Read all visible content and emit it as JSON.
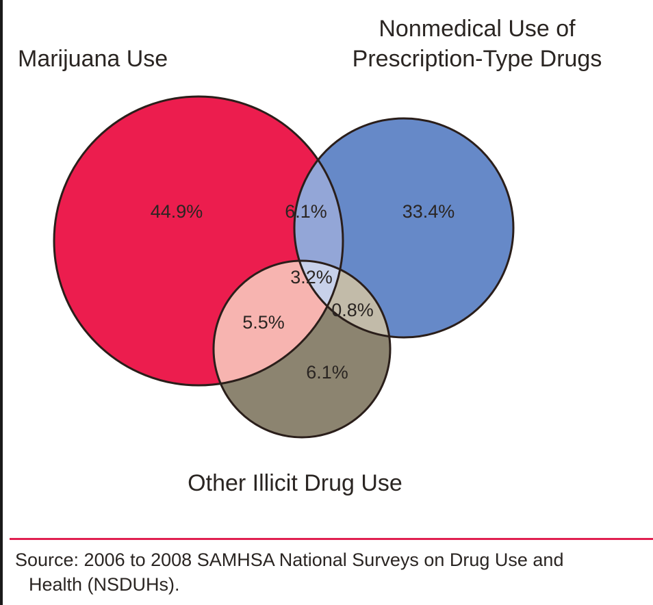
{
  "sets": {
    "marijuana": {
      "label": "Marijuana Use",
      "color": "#ec1d4e"
    },
    "prescription": {
      "label_line1": "Nonmedical Use of",
      "label_line2": "Prescription-Type Drugs",
      "color": "#6689c8"
    },
    "other": {
      "label": "Other Illicit Drug Use",
      "color": "#8c8470"
    }
  },
  "regions": {
    "marijuana_only": {
      "value": "44.9%",
      "color": "#ec1d4e"
    },
    "prescription_only": {
      "value": "33.4%",
      "color": "#6689c8"
    },
    "marijuana_prescription": {
      "value": "6.1%",
      "color": "#93a6d7"
    },
    "all_three": {
      "value": "3.2%",
      "color": "#c8d1ea"
    },
    "marijuana_other": {
      "value": "5.5%",
      "color": "#f7b4b0"
    },
    "prescription_other": {
      "value": "0.8%",
      "color": "#c2bba9"
    },
    "other_only": {
      "value": "6.1%",
      "color": "#8c8470"
    }
  },
  "outline_color": "#2a1e1a",
  "divider_color": "#e01f50",
  "source": {
    "line1": "Source: 2006 to 2008 SAMHSA National Surveys on Drug Use and",
    "line2": "Health (NSDUHs)."
  }
}
